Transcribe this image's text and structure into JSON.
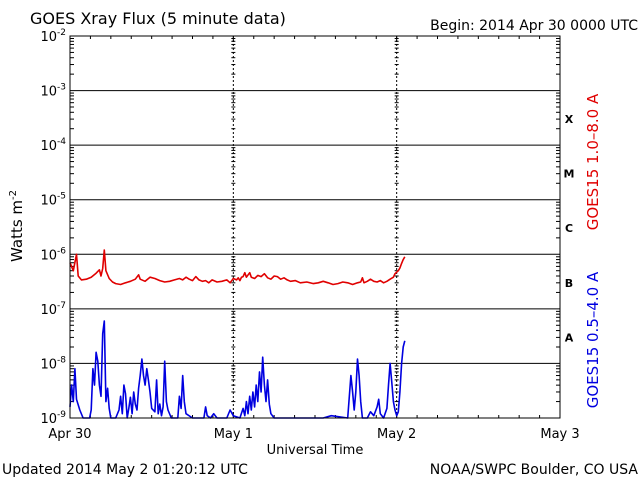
{
  "chart_data": {
    "type": "line",
    "title": "GOES Xray Flux (5 minute data)",
    "begin_label": "Begin:  2014 Apr 30 0000 UTC",
    "xlabel": "Universal Time",
    "ylabel": "Watts m",
    "ylabel_exponent": "-2",
    "y_scale": "log",
    "ylim": [
      1e-09,
      0.01
    ],
    "y_ticks": [
      {
        "base": "10",
        "exp": "-2",
        "value": 0.01
      },
      {
        "base": "10",
        "exp": "-3",
        "value": 0.001
      },
      {
        "base": "10",
        "exp": "-4",
        "value": 0.0001
      },
      {
        "base": "10",
        "exp": "-5",
        "value": 1e-05
      },
      {
        "base": "10",
        "exp": "-6",
        "value": 1e-06
      },
      {
        "base": "10",
        "exp": "-7",
        "value": 1e-07
      },
      {
        "base": "10",
        "exp": "-8",
        "value": 1e-08
      },
      {
        "base": "10",
        "exp": "-9",
        "value": 1e-09
      }
    ],
    "x_ticks": [
      {
        "label": "Apr 30",
        "day": 0
      },
      {
        "label": "May 1",
        "day": 1
      },
      {
        "label": "May 2",
        "day": 2
      },
      {
        "label": "May 3",
        "day": 3
      }
    ],
    "xlim_days": [
      0,
      3
    ],
    "gridlines_y": [
      0.001,
      0.0001,
      1e-05,
      1e-06,
      1e-07,
      1e-08
    ],
    "flare_classes": [
      {
        "label": "X",
        "value": 0.0003
      },
      {
        "label": "M",
        "value": 3e-05
      },
      {
        "label": "C",
        "value": 3e-06
      },
      {
        "label": "B",
        "value": 3e-07
      },
      {
        "label": "A",
        "value": 3e-08
      }
    ],
    "series": [
      {
        "name": "GOES15 1.0–8.0 A",
        "color": "#e00000",
        "points": [
          [
            0.0,
            7e-07
          ],
          [
            0.02,
            5e-07
          ],
          [
            0.04,
            1e-06
          ],
          [
            0.05,
            4e-07
          ],
          [
            0.07,
            3.4e-07
          ],
          [
            0.1,
            3.5e-07
          ],
          [
            0.13,
            3.8e-07
          ],
          [
            0.16,
            4.5e-07
          ],
          [
            0.18,
            5.2e-07
          ],
          [
            0.19,
            4e-07
          ],
          [
            0.2,
            5.5e-07
          ],
          [
            0.21,
            1.2e-06
          ],
          [
            0.22,
            5e-07
          ],
          [
            0.24,
            3.6e-07
          ],
          [
            0.26,
            3.1e-07
          ],
          [
            0.28,
            2.9e-07
          ],
          [
            0.31,
            2.8e-07
          ],
          [
            0.34,
            3e-07
          ],
          [
            0.37,
            3.2e-07
          ],
          [
            0.4,
            3.5e-07
          ],
          [
            0.42,
            4.2e-07
          ],
          [
            0.43,
            3.5e-07
          ],
          [
            0.46,
            3.2e-07
          ],
          [
            0.49,
            3.8e-07
          ],
          [
            0.52,
            3.6e-07
          ],
          [
            0.55,
            3.3e-07
          ],
          [
            0.58,
            3.1e-07
          ],
          [
            0.61,
            3.2e-07
          ],
          [
            0.64,
            3.4e-07
          ],
          [
            0.67,
            3.6e-07
          ],
          [
            0.69,
            3.4e-07
          ],
          [
            0.71,
            3.8e-07
          ],
          [
            0.73,
            3.5e-07
          ],
          [
            0.75,
            3.3e-07
          ],
          [
            0.77,
            3.9e-07
          ],
          [
            0.79,
            3.4e-07
          ],
          [
            0.81,
            3.2e-07
          ],
          [
            0.83,
            3.3e-07
          ],
          [
            0.85,
            3e-07
          ],
          [
            0.87,
            3.4e-07
          ],
          [
            0.9,
            3.1e-07
          ],
          [
            0.93,
            3.2e-07
          ],
          [
            0.96,
            3.4e-07
          ],
          [
            0.98,
            3e-07
          ],
          [
            1.0,
            3.6e-07
          ],
          [
            1.02,
            3.4e-07
          ],
          [
            1.03,
            3.7e-07
          ],
          [
            1.04,
            3.3e-07
          ],
          [
            1.05,
            3.8e-07
          ],
          [
            1.06,
            3.9e-07
          ],
          [
            1.07,
            4.6e-07
          ],
          [
            1.08,
            3.8e-07
          ],
          [
            1.1,
            4.6e-07
          ],
          [
            1.11,
            3.8e-07
          ],
          [
            1.13,
            3.6e-07
          ],
          [
            1.15,
            4.1e-07
          ],
          [
            1.17,
            3.9e-07
          ],
          [
            1.19,
            4.4e-07
          ],
          [
            1.21,
            3.7e-07
          ],
          [
            1.23,
            3.5e-07
          ],
          [
            1.25,
            4e-07
          ],
          [
            1.27,
            3.9e-07
          ],
          [
            1.29,
            3.5e-07
          ],
          [
            1.31,
            3.7e-07
          ],
          [
            1.33,
            3.4e-07
          ],
          [
            1.35,
            3.2e-07
          ],
          [
            1.38,
            3.3e-07
          ],
          [
            1.41,
            3e-07
          ],
          [
            1.45,
            3.1e-07
          ],
          [
            1.49,
            2.9e-07
          ],
          [
            1.52,
            3e-07
          ],
          [
            1.55,
            3.2e-07
          ],
          [
            1.58,
            3e-07
          ],
          [
            1.61,
            2.8e-07
          ],
          [
            1.64,
            2.9e-07
          ],
          [
            1.67,
            3.1e-07
          ],
          [
            1.7,
            3e-07
          ],
          [
            1.73,
            2.8e-07
          ],
          [
            1.76,
            3e-07
          ],
          [
            1.78,
            3.1e-07
          ],
          [
            1.79,
            3.7e-07
          ],
          [
            1.8,
            3e-07
          ],
          [
            1.82,
            3.2e-07
          ],
          [
            1.84,
            3.5e-07
          ],
          [
            1.86,
            3.2e-07
          ],
          [
            1.88,
            3.1e-07
          ],
          [
            1.9,
            3.3e-07
          ],
          [
            1.92,
            3e-07
          ],
          [
            1.94,
            3.2e-07
          ],
          [
            1.96,
            3.5e-07
          ],
          [
            1.98,
            3.8e-07
          ],
          [
            1.99,
            4.4e-07
          ],
          [
            2.01,
            5e-07
          ],
          [
            2.02,
            5.6e-07
          ],
          [
            2.03,
            6.8e-07
          ],
          [
            2.04,
            8e-07
          ],
          [
            2.05,
            9e-07
          ]
        ]
      },
      {
        "name": "GOES15 0.5–4.0 A",
        "color": "#0000e0",
        "points": [
          [
            0.0,
            1.6e-09
          ],
          [
            0.01,
            4e-09
          ],
          [
            0.02,
            2e-09
          ],
          [
            0.03,
            8e-09
          ],
          [
            0.04,
            2.2e-09
          ],
          [
            0.06,
            1.4e-09
          ],
          [
            0.08,
            1e-09
          ],
          [
            0.12,
            1e-09
          ],
          [
            0.13,
            1.4e-09
          ],
          [
            0.14,
            8e-09
          ],
          [
            0.15,
            4e-09
          ],
          [
            0.16,
            1.6e-08
          ],
          [
            0.17,
            1.1e-08
          ],
          [
            0.18,
            4e-09
          ],
          [
            0.19,
            2.5e-09
          ],
          [
            0.2,
            3.5e-08
          ],
          [
            0.21,
            6e-08
          ],
          [
            0.22,
            2e-09
          ],
          [
            0.23,
            3.5e-09
          ],
          [
            0.24,
            1.5e-09
          ],
          [
            0.25,
            1e-09
          ],
          [
            0.28,
            1e-09
          ],
          [
            0.3,
            1.4e-09
          ],
          [
            0.31,
            2.5e-09
          ],
          [
            0.32,
            1.2e-09
          ],
          [
            0.33,
            4e-09
          ],
          [
            0.34,
            2.8e-09
          ],
          [
            0.35,
            1e-09
          ],
          [
            0.36,
            1.5e-09
          ],
          [
            0.37,
            2.4e-09
          ],
          [
            0.38,
            1.2e-09
          ],
          [
            0.39,
            3e-09
          ],
          [
            0.4,
            1.8e-09
          ],
          [
            0.41,
            1.4e-09
          ],
          [
            0.42,
            3.5e-09
          ],
          [
            0.43,
            6e-09
          ],
          [
            0.44,
            1.2e-08
          ],
          [
            0.45,
            6e-09
          ],
          [
            0.46,
            4e-09
          ],
          [
            0.47,
            8e-09
          ],
          [
            0.48,
            5e-09
          ],
          [
            0.49,
            3e-09
          ],
          [
            0.5,
            1.5e-09
          ],
          [
            0.52,
            1.3e-09
          ],
          [
            0.53,
            5e-09
          ],
          [
            0.54,
            1.2e-09
          ],
          [
            0.55,
            1.8e-09
          ],
          [
            0.56,
            1.1e-09
          ],
          [
            0.57,
            1.6e-09
          ],
          [
            0.58,
            1.1e-08
          ],
          [
            0.59,
            2e-09
          ],
          [
            0.6,
            1.4e-09
          ],
          [
            0.62,
            1e-09
          ],
          [
            0.66,
            1e-09
          ],
          [
            0.67,
            2.5e-09
          ],
          [
            0.68,
            1.5e-09
          ],
          [
            0.69,
            6e-09
          ],
          [
            0.7,
            2e-09
          ],
          [
            0.71,
            1.2e-09
          ],
          [
            0.75,
            1e-09
          ],
          [
            0.82,
            1e-09
          ],
          [
            0.83,
            1.6e-09
          ],
          [
            0.84,
            1.1e-09
          ],
          [
            0.86,
            1e-09
          ],
          [
            0.88,
            1.2e-09
          ],
          [
            0.9,
            1e-09
          ],
          [
            0.96,
            1e-09
          ],
          [
            0.98,
            1.4e-09
          ],
          [
            1.0,
            1.1e-09
          ],
          [
            1.04,
            1e-09
          ],
          [
            1.06,
            1.5e-09
          ],
          [
            1.07,
            1.1e-09
          ],
          [
            1.08,
            2e-09
          ],
          [
            1.09,
            1.2e-09
          ],
          [
            1.1,
            2.5e-09
          ],
          [
            1.11,
            1.4e-09
          ],
          [
            1.12,
            3e-09
          ],
          [
            1.13,
            1.6e-09
          ],
          [
            1.14,
            4e-09
          ],
          [
            1.15,
            2e-09
          ],
          [
            1.16,
            7e-09
          ],
          [
            1.17,
            3e-09
          ],
          [
            1.18,
            1.3e-08
          ],
          [
            1.19,
            4e-09
          ],
          [
            1.2,
            2e-09
          ],
          [
            1.21,
            5e-09
          ],
          [
            1.22,
            1.8e-09
          ],
          [
            1.23,
            1.2e-09
          ],
          [
            1.25,
            1e-09
          ],
          [
            1.3,
            1e-09
          ],
          [
            1.4,
            1e-09
          ],
          [
            1.55,
            1e-09
          ],
          [
            1.6,
            1.1e-09
          ],
          [
            1.7,
            1e-09
          ],
          [
            1.72,
            6e-09
          ],
          [
            1.73,
            3e-09
          ],
          [
            1.74,
            1.4e-09
          ],
          [
            1.75,
            3e-09
          ],
          [
            1.76,
            1.2e-08
          ],
          [
            1.77,
            6e-09
          ],
          [
            1.78,
            2e-09
          ],
          [
            1.79,
            1e-09
          ],
          [
            1.82,
            1e-09
          ],
          [
            1.84,
            1.3e-09
          ],
          [
            1.86,
            1.1e-09
          ],
          [
            1.88,
            1.6e-09
          ],
          [
            1.89,
            2.2e-09
          ],
          [
            1.9,
            1.2e-09
          ],
          [
            1.92,
            1e-09
          ],
          [
            1.94,
            1.5e-09
          ],
          [
            1.95,
            4e-09
          ],
          [
            1.96,
            1e-08
          ],
          [
            1.97,
            4.5e-09
          ],
          [
            1.98,
            2e-09
          ],
          [
            1.99,
            1.4e-09
          ],
          [
            2.0,
            1.1e-09
          ],
          [
            2.01,
            1.3e-09
          ],
          [
            2.02,
            3e-09
          ],
          [
            2.03,
            1e-08
          ],
          [
            2.04,
            2e-08
          ],
          [
            2.05,
            2.6e-08
          ]
        ]
      }
    ]
  },
  "footer": {
    "updated": "Updated 2014 May  2 01:20:12 UTC",
    "credit": "NOAA/SWPC Boulder, CO USA"
  }
}
